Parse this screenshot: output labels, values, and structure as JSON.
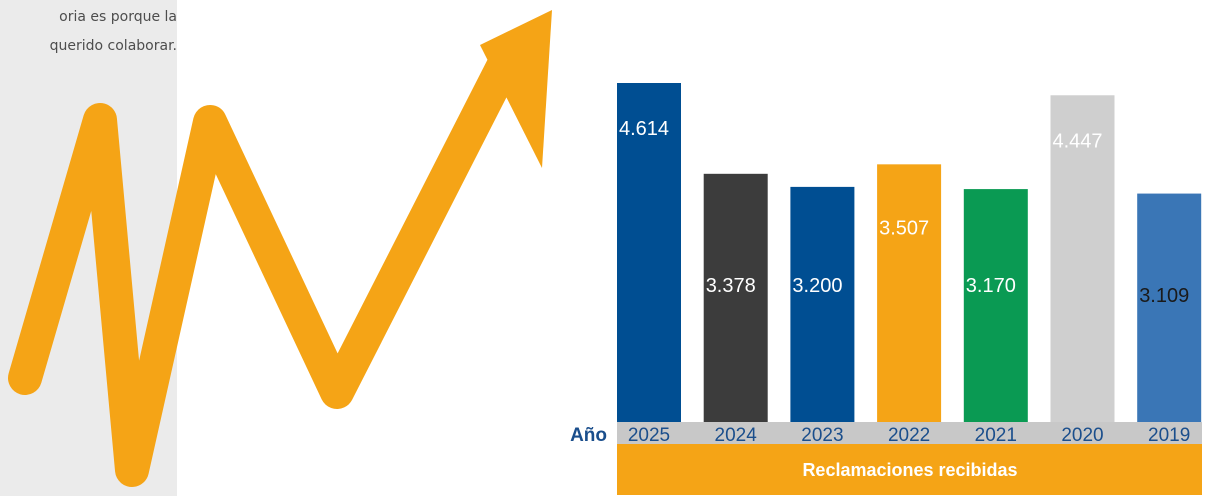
{
  "side_text": {
    "line1": "oria es porque la",
    "line2": "querido colaborar."
  },
  "colors": {
    "arrow": "#f5a416",
    "panel": "#ebebeb",
    "axis_band": "#c8c8c8",
    "footer": "#f5a416",
    "year_text": "#1a4e8c"
  },
  "chart_data": {
    "type": "bar",
    "axis_label": "Año",
    "footer_label": "Reclamaciones recibidas",
    "categories": [
      "2025",
      "2024",
      "2023",
      "2022",
      "2021",
      "2020",
      "2019"
    ],
    "values": [
      4614,
      3378,
      3200,
      3507,
      3170,
      4447,
      3109
    ],
    "value_labels": [
      "4.614",
      "3.378",
      "3.200",
      "3.507",
      "3.170",
      "4.447",
      "3.109"
    ],
    "bar_colors": [
      "#004e92",
      "#3c3c3c",
      "#004e92",
      "#f5a416",
      "#0a9a53",
      "#cfcfcf",
      "#3a76b6"
    ],
    "grid": false,
    "legend": "none"
  }
}
